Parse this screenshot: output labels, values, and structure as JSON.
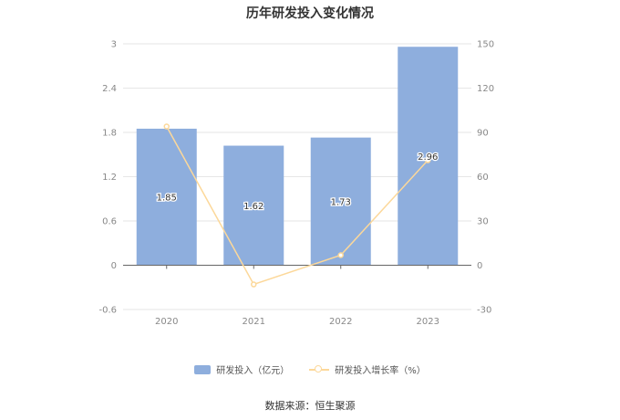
{
  "title": "历年研发投入变化情况",
  "source": "数据来源：恒生聚源",
  "colors": {
    "bar": "#8eaedd",
    "line": "#fcd89a",
    "axis_text": "#888888",
    "grid": "#e6e6e6",
    "axis_line": "#666666"
  },
  "chart_data": {
    "type": "bar",
    "title": "历年研发投入变化情况",
    "categories": [
      "2020",
      "2021",
      "2022",
      "2023"
    ],
    "series": [
      {
        "name": "研发投入（亿元）",
        "type": "bar",
        "axis": "left",
        "values": [
          1.85,
          1.62,
          1.73,
          2.96
        ],
        "labels": [
          "1.85",
          "1.62",
          "1.73",
          "2.96"
        ]
      },
      {
        "name": "研发投入增长率（%）",
        "type": "line",
        "axis": "right",
        "values": [
          94,
          -13,
          6.8,
          71.1
        ]
      }
    ],
    "y_left": {
      "min": -0.6,
      "max": 3,
      "ticks": [
        "-0.6",
        "0",
        "0.6",
        "1.2",
        "1.8",
        "2.4",
        "3"
      ]
    },
    "y_right": {
      "min": -30,
      "max": 150,
      "ticks": [
        "-30",
        "0",
        "30",
        "60",
        "90",
        "120",
        "150"
      ]
    },
    "grid": true,
    "legend_position": "bottom"
  }
}
